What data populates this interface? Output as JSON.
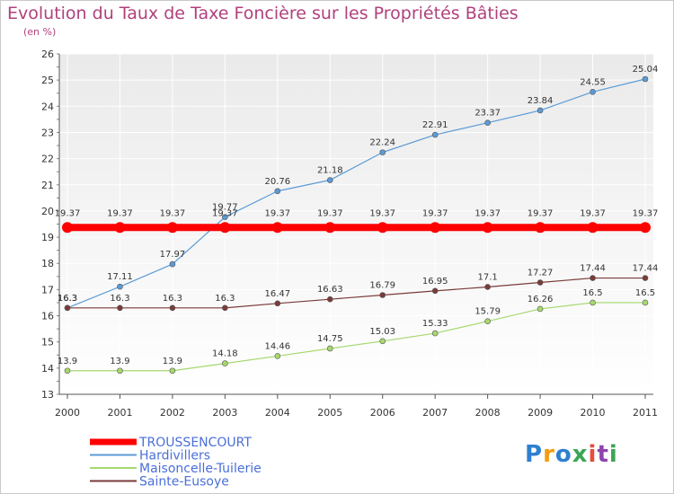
{
  "header": {
    "title": "Evolution du Taux de Taxe Foncière sur les Propriétés Bâties",
    "subtitle": "(en %)"
  },
  "logo": {
    "text": "Proxiti",
    "colors": [
      "#2f7fd1",
      "#f39c12",
      "#2f7fd1",
      "#3aa655",
      "#e74c3c",
      "#8e44ad",
      "#3aa655"
    ]
  },
  "chart_data": {
    "type": "line",
    "x": [
      "2000",
      "2001",
      "2002",
      "2003",
      "2004",
      "2005",
      "2006",
      "2007",
      "2008",
      "2009",
      "2010",
      "2011"
    ],
    "ylim": [
      13,
      26
    ],
    "yticks": [
      13,
      14,
      15,
      16,
      17,
      18,
      19,
      20,
      21,
      22,
      23,
      24,
      25,
      26
    ],
    "grid": true,
    "legend": "bottom-left",
    "series": [
      {
        "name": "TROUSSENCOURT",
        "color": "#ff0000",
        "values": [
          19.37,
          19.37,
          19.37,
          19.37,
          19.37,
          19.37,
          19.37,
          19.37,
          19.37,
          19.37,
          19.37,
          19.37
        ],
        "labels": [
          "19.37",
          "19.37",
          "19.37",
          "19.37",
          "19.37",
          "19.37",
          "19.37",
          "19.37",
          "19.37",
          "19.37",
          "19.37",
          "19.37"
        ]
      },
      {
        "name": "Hardivillers",
        "color": "#5b9bd5",
        "values": [
          16.3,
          17.11,
          17.97,
          19.77,
          20.76,
          21.18,
          22.24,
          22.91,
          23.37,
          23.84,
          24.55,
          25.04
        ],
        "labels": [
          "16.3",
          "17.11",
          "17.97",
          "19.77",
          "20.76",
          "21.18",
          "22.24",
          "22.91",
          "23.37",
          "23.84",
          "24.55",
          "25.04"
        ]
      },
      {
        "name": "Maisoncelle-Tuilerie",
        "color": "#a6d86e",
        "values": [
          13.9,
          13.9,
          13.9,
          14.18,
          14.46,
          14.75,
          15.03,
          15.33,
          15.79,
          16.26,
          16.5,
          16.5
        ],
        "labels": [
          "13.9",
          "13.9",
          "13.9",
          "14.18",
          "14.46",
          "14.75",
          "15.03",
          "15.33",
          "15.79",
          "16.26",
          "16.5",
          "16.5"
        ]
      },
      {
        "name": "Sainte-Eusoye",
        "color": "#7a3b3b",
        "values": [
          16.3,
          16.3,
          16.3,
          16.3,
          16.47,
          16.63,
          16.79,
          16.95,
          17.1,
          17.27,
          17.44,
          17.44
        ],
        "labels": [
          "16.3",
          "16.3",
          "16.3",
          "16.3",
          "16.47",
          "16.63",
          "16.79",
          "16.95",
          "17.1",
          "17.27",
          "17.44",
          "17.44"
        ]
      }
    ]
  }
}
